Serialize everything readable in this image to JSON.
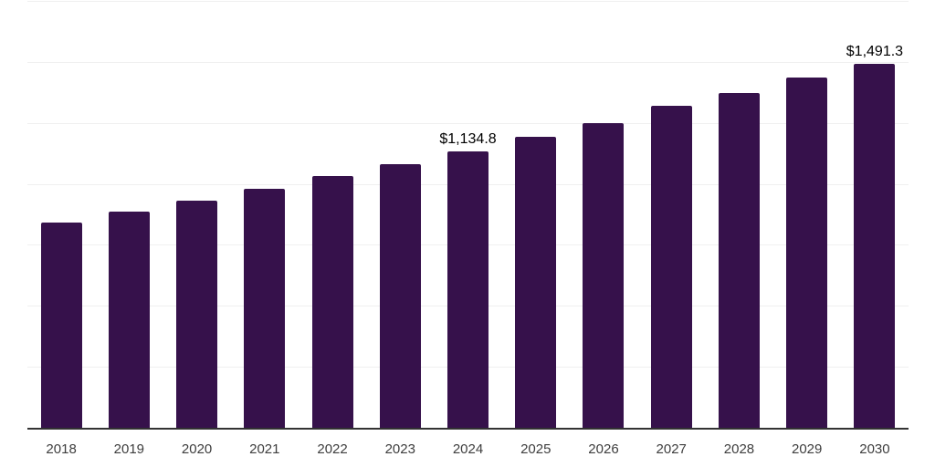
{
  "chart_data": {
    "type": "bar",
    "title": "",
    "xlabel": "",
    "ylabel": "",
    "categories": [
      "2018",
      "2019",
      "2020",
      "2021",
      "2022",
      "2023",
      "2024",
      "2025",
      "2026",
      "2027",
      "2028",
      "2029",
      "2030"
    ],
    "values": [
      841.4,
      886.2,
      931.1,
      979.7,
      1032.1,
      1080.7,
      1134.8,
      1192.8,
      1250.0,
      1320.0,
      1372.4,
      1436.0,
      1491.3
    ],
    "point_labels": [
      "",
      "",
      "",
      "",
      "",
      "",
      "$1,134.8",
      "",
      "",
      "",
      "",
      "",
      "$1,491.3"
    ],
    "ylim": [
      0,
      1750
    ],
    "gridline_step": 250,
    "grid": "horizontal",
    "y_axis_tick_labels_visible": false,
    "legend": "none"
  },
  "colors": {
    "background": "#FFFFFF",
    "bar": "#36114B",
    "gridline": "#F0F0F0",
    "axis_line": "#333333",
    "tick_label": "#3D3D3D",
    "data_label": "#000000"
  }
}
